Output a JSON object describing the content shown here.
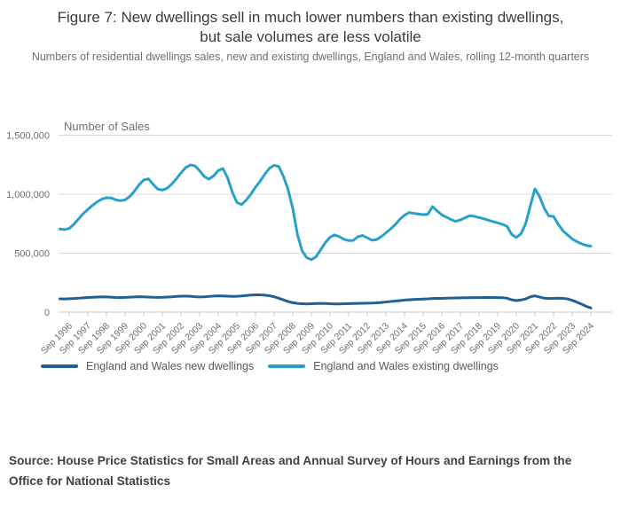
{
  "figure": {
    "title": "Figure 7: New dwellings sell in much lower numbers than existing dwellings, but sale volumes are less volatile",
    "subtitle": "Numbers of residential dwellings sales, new and existing dwellings, England and Wales, rolling 12-month quarters",
    "source": "Source: House Price Statistics for Small Areas and Annual Survey of Hours and Earnings from the Office for National Statistics"
  },
  "chart_data": {
    "type": "line",
    "title": "Figure 7: New dwellings sell in much lower numbers than existing dwellings, but sale volumes are less volatile",
    "xlabel": "",
    "ylabel": "Number of Sales",
    "ylim": [
      0,
      1500000
    ],
    "grid": true,
    "legend_position": "bottom",
    "y_ticks": [
      0,
      500000,
      1000000,
      1500000
    ],
    "y_tick_labels": [
      "0",
      "500,000",
      "1,000,000",
      "1,500,000"
    ],
    "x_interval": "quarterly",
    "x_start": "1996 Q1",
    "x_end": "2024 Q3",
    "x_first_tick_index": 2,
    "x_tick_every": 4,
    "x_tick_labels": [
      "Sep 1996",
      "Sep 1997",
      "Sep 1998",
      "Sep 1999",
      "Sep 2000",
      "Sep 2001",
      "Sep 2002",
      "Sep 2003",
      "Sep 2004",
      "Sep 2005",
      "Sep 2006",
      "Sep 2007",
      "Sep 2008",
      "Sep 2009",
      "Sep 2010",
      "Sep 2011",
      "Sep 2012",
      "Sep 2013",
      "Sep 2014",
      "Sep 2015",
      "Sep 2016",
      "Sep 2017",
      "Sep 2018",
      "Sep 2019",
      "Sep 2020",
      "Sep 2021",
      "Sep 2022",
      "Sep 2023",
      "Sep 2024"
    ],
    "series": [
      {
        "name": "England and Wales new dwellings",
        "color": "#206095",
        "values": [
          113000,
          112000,
          114000,
          116000,
          118000,
          121000,
          124000,
          126000,
          128000,
          130000,
          129000,
          127000,
          124000,
          123000,
          125000,
          127000,
          129000,
          131000,
          130000,
          128000,
          126000,
          125000,
          126000,
          128000,
          130000,
          133000,
          135000,
          136000,
          134000,
          131000,
          129000,
          130000,
          133000,
          136000,
          138000,
          137000,
          135000,
          133000,
          134000,
          137000,
          141000,
          145000,
          147000,
          147000,
          144000,
          139000,
          130000,
          118000,
          104000,
          90000,
          80000,
          74000,
          71000,
          70000,
          71000,
          73000,
          74000,
          73000,
          71000,
          70000,
          70000,
          71000,
          72000,
          73000,
          74000,
          75000,
          76000,
          77000,
          79000,
          82000,
          86000,
          90000,
          94000,
          98000,
          102000,
          105000,
          107000,
          109000,
          111000,
          113000,
          116000,
          117000,
          117000,
          118000,
          119000,
          120000,
          121000,
          122000,
          122000,
          123000,
          123000,
          124000,
          124000,
          124000,
          123000,
          122000,
          118000,
          105000,
          98000,
          103000,
          112000,
          130000,
          138000,
          128000,
          118000,
          116000,
          117000,
          118000,
          117000,
          112000,
          100000,
          85000,
          68000,
          50000,
          35000
        ]
      },
      {
        "name": "England and Wales existing dwellings",
        "color": "#27a0cc",
        "values": [
          705000,
          700000,
          710000,
          745000,
          790000,
          835000,
          870000,
          905000,
          935000,
          958000,
          970000,
          968000,
          952000,
          945000,
          952000,
          980000,
          1025000,
          1080000,
          1120000,
          1130000,
          1085000,
          1043000,
          1035000,
          1050000,
          1085000,
          1130000,
          1180000,
          1225000,
          1248000,
          1240000,
          1200000,
          1150000,
          1128000,
          1155000,
          1200000,
          1218000,
          1140000,
          1020000,
          930000,
          912000,
          950000,
          1000000,
          1060000,
          1110000,
          1170000,
          1220000,
          1245000,
          1235000,
          1150000,
          1040000,
          880000,
          660000,
          520000,
          462000,
          445000,
          470000,
          530000,
          590000,
          635000,
          655000,
          640000,
          618000,
          607000,
          608000,
          640000,
          650000,
          630000,
          610000,
          615000,
          640000,
          672000,
          705000,
          742000,
          788000,
          822000,
          845000,
          838000,
          832000,
          827000,
          830000,
          895000,
          858000,
          825000,
          805000,
          785000,
          770000,
          782000,
          800000,
          818000,
          812000,
          802000,
          792000,
          780000,
          768000,
          757000,
          745000,
          728000,
          660000,
          633000,
          665000,
          750000,
          900000,
          1045000,
          980000,
          880000,
          815000,
          812000,
          745000,
          690000,
          655000,
          620000,
          598000,
          580000,
          566000,
          560000
        ]
      }
    ]
  }
}
